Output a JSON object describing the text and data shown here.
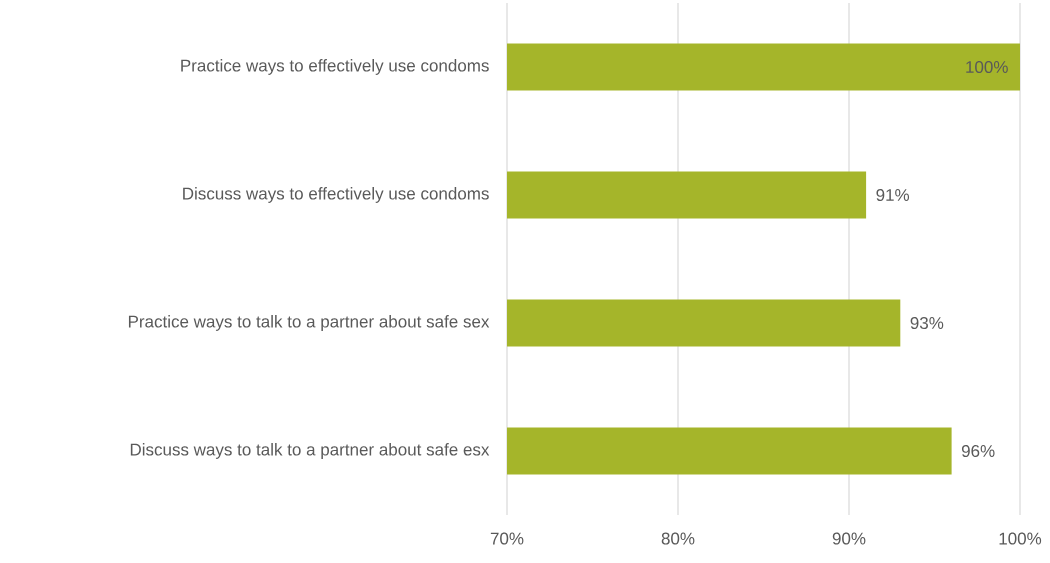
{
  "chart_data": {
    "type": "bar",
    "orientation": "horizontal",
    "categories": [
      "Practice ways to effectively use condoms",
      "Discuss ways to effectively use condoms",
      "Practice ways to talk to a partner about safe sex",
      "Discuss ways to talk to a partner about safe esx"
    ],
    "values": [
      100,
      91,
      93,
      96
    ],
    "value_labels": [
      "100%",
      "91%",
      "93%",
      "96%"
    ],
    "color": "#a5b52a",
    "xlim": [
      70,
      100
    ],
    "xticks": [
      {
        "value": 70,
        "label": "70%"
      },
      {
        "value": 80,
        "label": "80%"
      },
      {
        "value": 90,
        "label": "90%"
      },
      {
        "value": 100,
        "label": "100%"
      }
    ],
    "grid": "x"
  }
}
